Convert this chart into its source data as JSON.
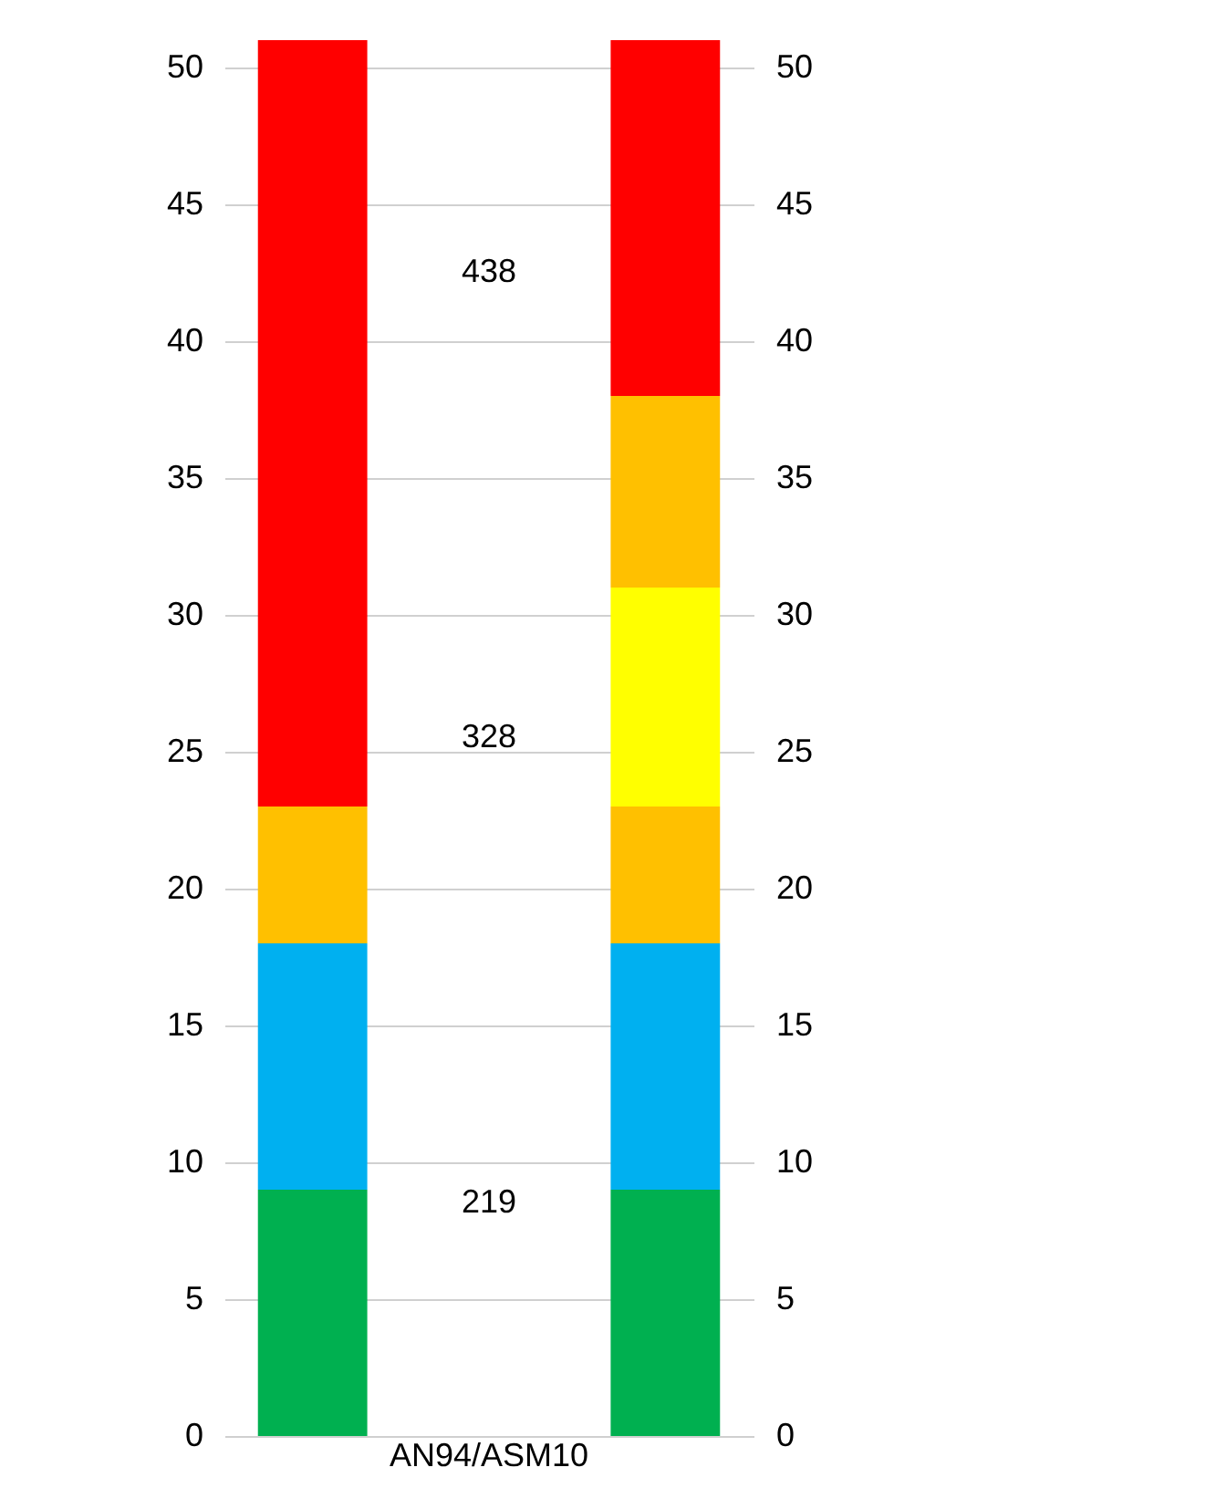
{
  "chart_data": {
    "type": "bar",
    "stacked": true,
    "categories": [
      null,
      "AN94/ASM10",
      null
    ],
    "series": [
      {
        "colors": [
          "#00b050",
          null,
          "#00b050"
        ],
        "values": [
          9,
          null,
          9
        ]
      },
      {
        "colors": [
          "#00b0f0",
          null,
          "#00b0f0"
        ],
        "values": [
          9,
          null,
          9
        ]
      },
      {
        "colors": [
          "#ffc000",
          null,
          "#ffc000"
        ],
        "values": [
          5,
          null,
          5
        ]
      },
      {
        "colors": [
          "#ff0000",
          null,
          "#ffff00"
        ],
        "values": [
          28,
          null,
          8
        ]
      },
      {
        "colors": [
          null,
          null,
          "#ffc000"
        ],
        "values": [
          null,
          null,
          7
        ]
      },
      {
        "colors": [
          null,
          null,
          "#ff0000"
        ],
        "values": [
          null,
          null,
          13
        ]
      }
    ],
    "ylim": [
      0,
      51
    ],
    "yticks": [
      0,
      5,
      10,
      15,
      20,
      25,
      30,
      35,
      40,
      45,
      50
    ],
    "y2lim": [
      0,
      51
    ],
    "y2ticks": [
      0,
      5,
      10,
      15,
      20,
      25,
      30,
      35,
      40,
      45,
      50
    ],
    "grid": "y",
    "annotations": [
      "438",
      "328",
      "219"
    ]
  }
}
